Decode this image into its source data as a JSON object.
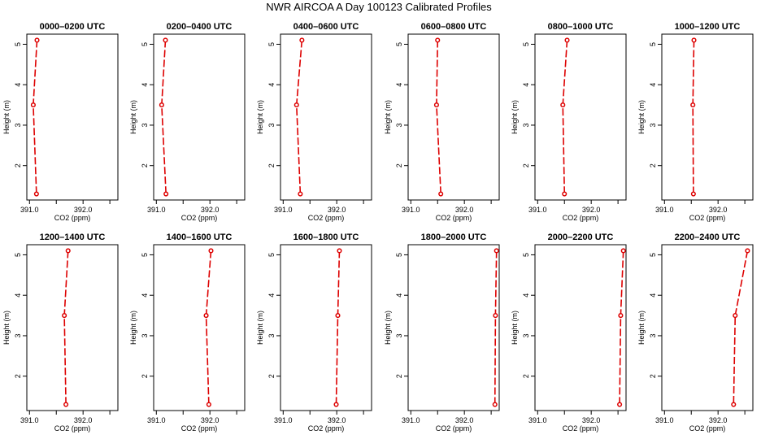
{
  "title": "NWR AIRCOA A  Day 100123  Calibrated Profiles",
  "chart_data": {
    "type": "line",
    "layout": "6x2 grid of panels",
    "xlabel": "CO2 (ppm)",
    "ylabel": "Height (m)",
    "xlim": [
      390.95,
      392.65
    ],
    "ylim": [
      1.15,
      5.25
    ],
    "x_ticks": [
      391.0,
      391.5,
      392.0,
      392.5
    ],
    "x_tick_labels": [
      "391.0",
      "",
      "392.0",
      ""
    ],
    "y_ticks": [
      2,
      3,
      4,
      5
    ],
    "y_tick_labels": [
      "2",
      "3",
      "4",
      "5"
    ],
    "grid": false,
    "series_color": "#dd0000",
    "marker": "open-circle",
    "line_style": "dashed",
    "panels": [
      {
        "title": "0000–0200 UTC",
        "x": [
          391.14,
          391.07,
          391.13
        ],
        "y": [
          5.1,
          3.5,
          1.3
        ]
      },
      {
        "title": "0200–0400 UTC",
        "x": [
          391.17,
          391.1,
          391.18
        ],
        "y": [
          5.1,
          3.5,
          1.3
        ]
      },
      {
        "title": "0400–0600 UTC",
        "x": [
          391.35,
          391.25,
          391.32
        ],
        "y": [
          5.1,
          3.5,
          1.3
        ]
      },
      {
        "title": "0600–0800 UTC",
        "x": [
          391.5,
          391.48,
          391.56
        ],
        "y": [
          5.1,
          3.5,
          1.3
        ]
      },
      {
        "title": "0800–1000 UTC",
        "x": [
          391.55,
          391.47,
          391.5
        ],
        "y": [
          5.1,
          3.5,
          1.3
        ]
      },
      {
        "title": "1000–1200 UTC",
        "x": [
          391.55,
          391.53,
          391.54
        ],
        "y": [
          5.1,
          3.5,
          1.3
        ]
      },
      {
        "title": "1200–1400 UTC",
        "x": [
          391.72,
          391.65,
          391.68
        ],
        "y": [
          5.1,
          3.5,
          1.3
        ]
      },
      {
        "title": "1400–1600 UTC",
        "x": [
          392.02,
          391.93,
          391.98
        ],
        "y": [
          5.1,
          3.5,
          1.3
        ]
      },
      {
        "title": "1600–1800 UTC",
        "x": [
          392.05,
          392.02,
          391.99
        ],
        "y": [
          5.1,
          3.5,
          1.3
        ]
      },
      {
        "title": "1800–2000 UTC",
        "x": [
          392.6,
          392.58,
          392.57
        ],
        "y": [
          5.1,
          3.5,
          1.3
        ]
      },
      {
        "title": "2000–2200 UTC",
        "x": [
          392.6,
          392.55,
          392.53
        ],
        "y": [
          5.1,
          3.5,
          1.3
        ]
      },
      {
        "title": "2200–2400 UTC",
        "x": [
          392.55,
          392.32,
          392.29
        ],
        "y": [
          5.1,
          3.5,
          1.3
        ]
      }
    ]
  }
}
